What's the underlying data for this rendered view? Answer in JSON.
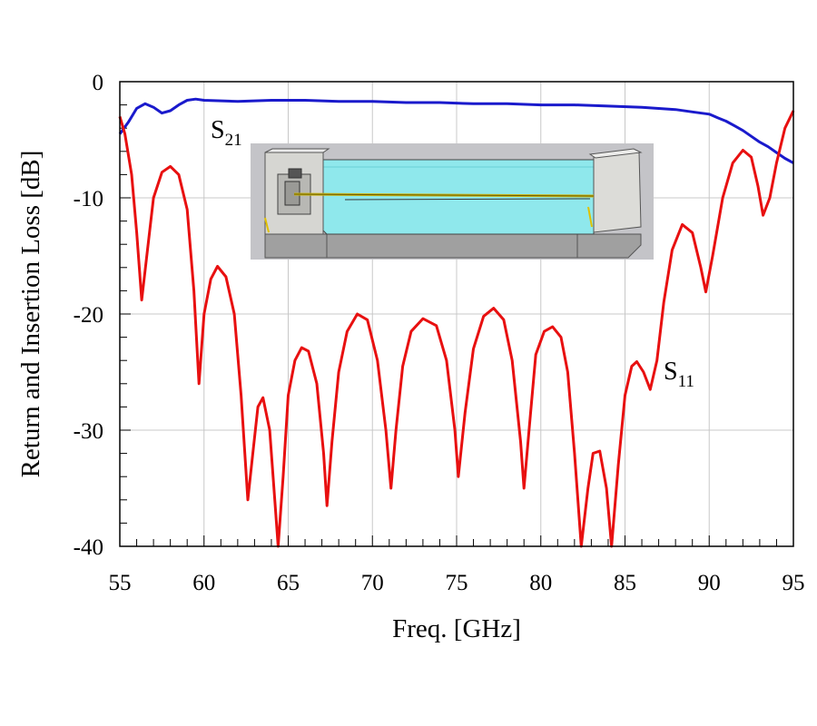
{
  "chart_data": {
    "type": "line",
    "xlabel": "Freq. [GHz]",
    "ylabel": "Return and Insertion Loss [dB]",
    "xlim": [
      55,
      95
    ],
    "ylim": [
      -40,
      0
    ],
    "x_ticks": [
      "55",
      "60",
      "65",
      "70",
      "75",
      "80",
      "85",
      "90",
      "95"
    ],
    "y_ticks": [
      "0",
      "-10",
      "-20",
      "-30",
      "-40"
    ],
    "grid": true,
    "series": [
      {
        "name": "S21",
        "label_main": "S",
        "label_sub": "21",
        "color": "#1a1acc",
        "points": [
          [
            55.0,
            -4.5
          ],
          [
            55.5,
            -3.5
          ],
          [
            56.0,
            -2.3
          ],
          [
            56.5,
            -1.9
          ],
          [
            57.0,
            -2.2
          ],
          [
            57.5,
            -2.7
          ],
          [
            58.0,
            -2.5
          ],
          [
            58.5,
            -2.0
          ],
          [
            59.0,
            -1.6
          ],
          [
            59.5,
            -1.5
          ],
          [
            60,
            -1.6
          ],
          [
            62,
            -1.7
          ],
          [
            64,
            -1.6
          ],
          [
            66,
            -1.6
          ],
          [
            68,
            -1.7
          ],
          [
            70,
            -1.7
          ],
          [
            72,
            -1.8
          ],
          [
            74,
            -1.8
          ],
          [
            76,
            -1.9
          ],
          [
            78,
            -1.9
          ],
          [
            80,
            -2.0
          ],
          [
            82,
            -2.0
          ],
          [
            84,
            -2.1
          ],
          [
            86,
            -2.2
          ],
          [
            88,
            -2.4
          ],
          [
            89,
            -2.6
          ],
          [
            90,
            -2.8
          ],
          [
            90.5,
            -3.1
          ],
          [
            91,
            -3.4
          ],
          [
            91.5,
            -3.8
          ],
          [
            92,
            -4.2
          ],
          [
            92.5,
            -4.7
          ],
          [
            93,
            -5.2
          ],
          [
            93.5,
            -5.6
          ],
          [
            94,
            -6.1
          ],
          [
            94.5,
            -6.6
          ],
          [
            95,
            -7.0
          ]
        ]
      },
      {
        "name": "S11",
        "label_main": "S",
        "label_sub": "11",
        "color": "#e81010",
        "points": [
          [
            55.0,
            -3.0
          ],
          [
            55.3,
            -4.5
          ],
          [
            55.7,
            -8.0
          ],
          [
            56.0,
            -13.0
          ],
          [
            56.3,
            -18.8
          ],
          [
            56.6,
            -15.0
          ],
          [
            57.0,
            -10.0
          ],
          [
            57.5,
            -7.8
          ],
          [
            58.0,
            -7.3
          ],
          [
            58.5,
            -8.0
          ],
          [
            59.0,
            -11.0
          ],
          [
            59.4,
            -18.0
          ],
          [
            59.7,
            -26.0
          ],
          [
            60.0,
            -20.0
          ],
          [
            60.4,
            -17.0
          ],
          [
            60.8,
            -15.9
          ],
          [
            61.3,
            -16.8
          ],
          [
            61.8,
            -20.0
          ],
          [
            62.2,
            -27.0
          ],
          [
            62.6,
            -36.0
          ],
          [
            62.9,
            -32.0
          ],
          [
            63.2,
            -28.0
          ],
          [
            63.5,
            -27.2
          ],
          [
            63.9,
            -30.0
          ],
          [
            64.2,
            -36.0
          ],
          [
            64.4,
            -40.0
          ],
          [
            64.7,
            -34.0
          ],
          [
            65.0,
            -27.0
          ],
          [
            65.4,
            -24.0
          ],
          [
            65.8,
            -22.9
          ],
          [
            66.2,
            -23.2
          ],
          [
            66.7,
            -26.0
          ],
          [
            67.1,
            -32.0
          ],
          [
            67.3,
            -36.5
          ],
          [
            67.6,
            -31.0
          ],
          [
            68.0,
            -25.0
          ],
          [
            68.5,
            -21.5
          ],
          [
            69.1,
            -20.0
          ],
          [
            69.7,
            -20.5
          ],
          [
            70.3,
            -24.0
          ],
          [
            70.8,
            -30.0
          ],
          [
            71.1,
            -35.0
          ],
          [
            71.4,
            -30.0
          ],
          [
            71.8,
            -24.5
          ],
          [
            72.3,
            -21.5
          ],
          [
            73.0,
            -20.4
          ],
          [
            73.8,
            -21.0
          ],
          [
            74.4,
            -24.0
          ],
          [
            74.9,
            -30.0
          ],
          [
            75.1,
            -34.0
          ],
          [
            75.5,
            -28.5
          ],
          [
            76.0,
            -23.0
          ],
          [
            76.6,
            -20.2
          ],
          [
            77.2,
            -19.5
          ],
          [
            77.8,
            -20.5
          ],
          [
            78.3,
            -24.0
          ],
          [
            78.8,
            -31.0
          ],
          [
            79.0,
            -35.0
          ],
          [
            79.3,
            -30.0
          ],
          [
            79.7,
            -23.5
          ],
          [
            80.2,
            -21.5
          ],
          [
            80.7,
            -21.1
          ],
          [
            81.2,
            -22.0
          ],
          [
            81.6,
            -25.0
          ],
          [
            82.0,
            -32.0
          ],
          [
            82.4,
            -40.0
          ],
          [
            82.8,
            -35.0
          ],
          [
            83.1,
            -32.0
          ],
          [
            83.5,
            -31.8
          ],
          [
            83.9,
            -35.0
          ],
          [
            84.2,
            -40.0
          ],
          [
            84.6,
            -33.0
          ],
          [
            85.0,
            -27.0
          ],
          [
            85.4,
            -24.5
          ],
          [
            85.7,
            -24.1
          ],
          [
            86.1,
            -25.0
          ],
          [
            86.5,
            -26.5
          ],
          [
            86.9,
            -24.0
          ],
          [
            87.3,
            -19.0
          ],
          [
            87.8,
            -14.5
          ],
          [
            88.4,
            -12.3
          ],
          [
            89.0,
            -13.0
          ],
          [
            89.5,
            -16.0
          ],
          [
            89.8,
            -18.1
          ],
          [
            90.2,
            -15.0
          ],
          [
            90.8,
            -10.0
          ],
          [
            91.4,
            -7.0
          ],
          [
            92.0,
            -5.9
          ],
          [
            92.5,
            -6.5
          ],
          [
            92.9,
            -9.0
          ],
          [
            93.2,
            -11.5
          ],
          [
            93.6,
            -10.0
          ],
          [
            94.0,
            -7.0
          ],
          [
            94.5,
            -4.0
          ],
          [
            95.0,
            -2.5
          ]
        ]
      }
    ]
  },
  "inset": {
    "name": "device-3d-model-image"
  }
}
